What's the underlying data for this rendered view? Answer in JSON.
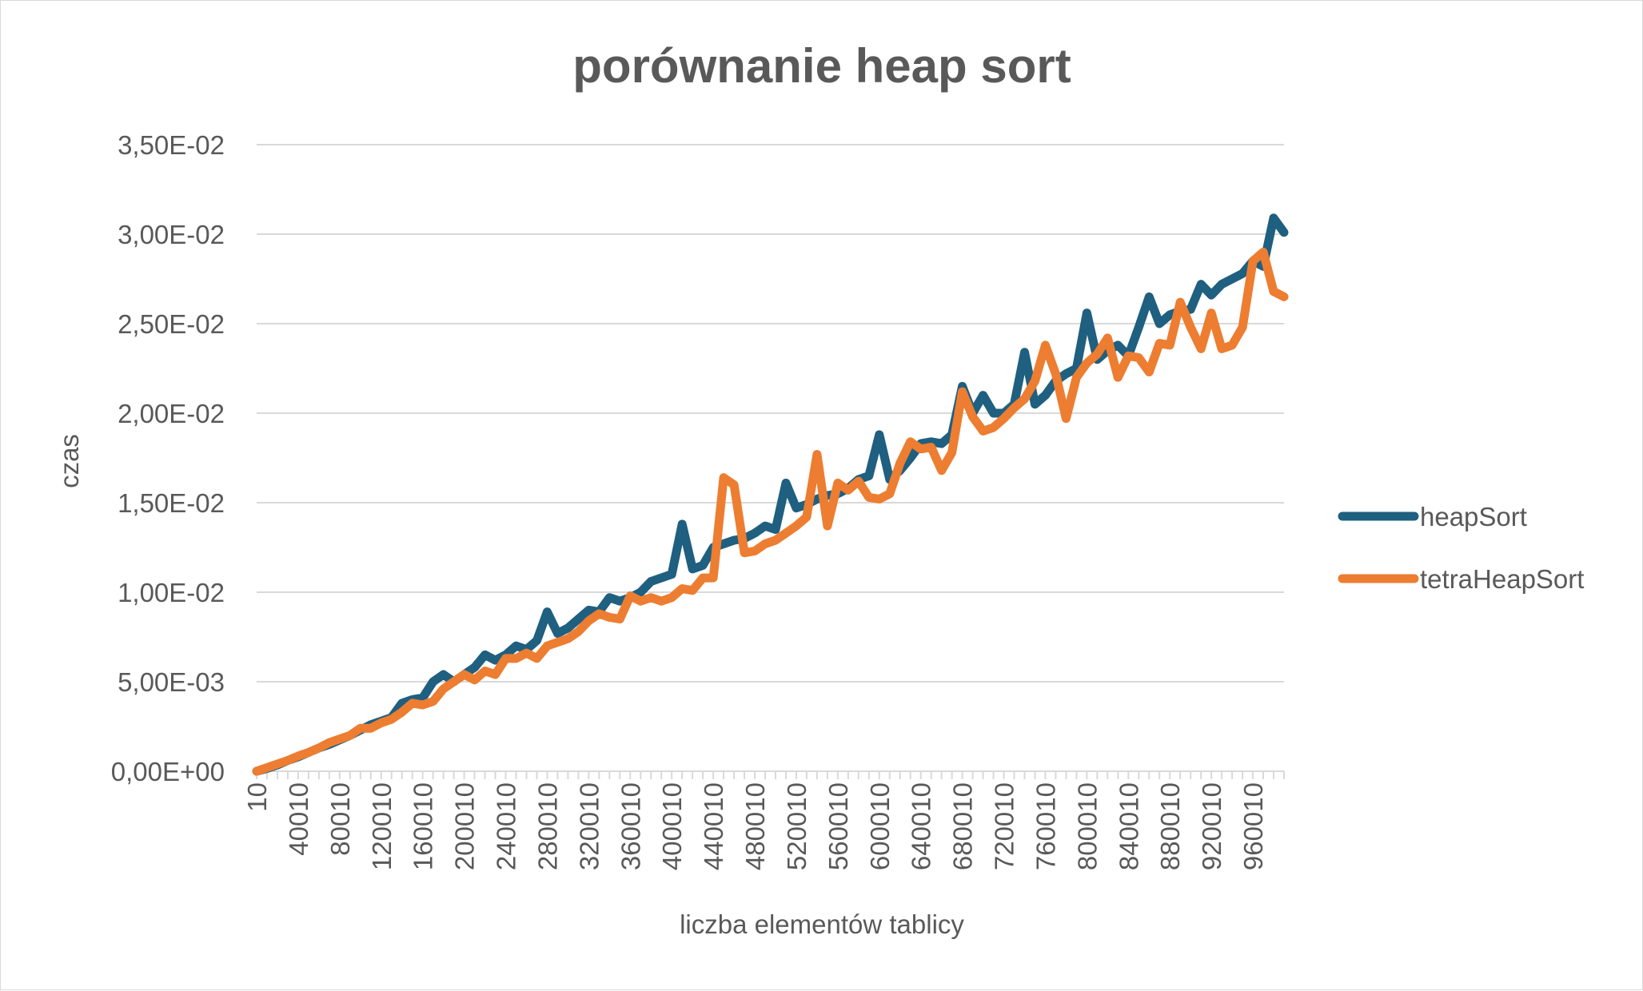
{
  "chart_data": {
    "type": "line",
    "title": "porównanie heap sort",
    "xlabel": "liczba elementów tablicy",
    "ylabel": "czas",
    "ylim": [
      0,
      0.035
    ],
    "y_ticks": [
      "0,00E+00",
      "5,00E-03",
      "1,00E-02",
      "1,50E-02",
      "2,00E-02",
      "2,50E-02",
      "3,00E-02",
      "3,50E-02"
    ],
    "x_tick_labels": [
      "10",
      "40010",
      "80010",
      "120010",
      "160010",
      "200010",
      "240010",
      "280010",
      "320010",
      "360010",
      "400010",
      "440010",
      "480010",
      "520010",
      "560010",
      "600010",
      "640010",
      "680010",
      "720010",
      "760010",
      "800010",
      "840010",
      "880010",
      "920010",
      "960010"
    ],
    "x_start": 10,
    "x_step": 10000,
    "grid": true,
    "legend_position": "right",
    "series": [
      {
        "name": "heapSort",
        "color": "#1f5f80",
        "values": [
          0.0,
          0.00015,
          0.00035,
          0.0006,
          0.0008,
          0.00105,
          0.0013,
          0.0015,
          0.00175,
          0.002,
          0.0023,
          0.0026,
          0.0028,
          0.003,
          0.0038,
          0.004,
          0.0041,
          0.005,
          0.0054,
          0.005,
          0.0054,
          0.0058,
          0.0065,
          0.0062,
          0.0065,
          0.007,
          0.0068,
          0.0073,
          0.0089,
          0.0077,
          0.008,
          0.0085,
          0.009,
          0.0089,
          0.0097,
          0.0095,
          0.0097,
          0.01,
          0.0106,
          0.0108,
          0.011,
          0.0138,
          0.0113,
          0.0115,
          0.0125,
          0.0127,
          0.0129,
          0.013,
          0.0133,
          0.0137,
          0.0135,
          0.0161,
          0.0147,
          0.0149,
          0.0152,
          0.0154,
          0.0155,
          0.0158,
          0.0163,
          0.0165,
          0.0188,
          0.0163,
          0.0168,
          0.0175,
          0.0183,
          0.0184,
          0.0183,
          0.0188,
          0.0215,
          0.02,
          0.021,
          0.02,
          0.02,
          0.0205,
          0.0234,
          0.0205,
          0.021,
          0.0218,
          0.0222,
          0.0225,
          0.0256,
          0.023,
          0.0235,
          0.0238,
          0.0232,
          0.0248,
          0.0265,
          0.025,
          0.0255,
          0.0257,
          0.0258,
          0.0272,
          0.0266,
          0.0272,
          0.0275,
          0.0278,
          0.0285,
          0.0282,
          0.0309,
          0.0301
        ]
      },
      {
        "name": "tetraHeapSort",
        "color": "#ed7d31",
        "values": [
          0.0,
          0.0002,
          0.0004,
          0.0006,
          0.00085,
          0.00105,
          0.0013,
          0.0016,
          0.0018,
          0.002,
          0.0024,
          0.0024,
          0.0027,
          0.0029,
          0.0033,
          0.0038,
          0.0037,
          0.0039,
          0.0046,
          0.005,
          0.0054,
          0.0051,
          0.0056,
          0.0054,
          0.0063,
          0.0063,
          0.0066,
          0.0063,
          0.007,
          0.0072,
          0.0074,
          0.0078,
          0.0084,
          0.0088,
          0.0086,
          0.0085,
          0.0098,
          0.0095,
          0.0097,
          0.0095,
          0.0097,
          0.0102,
          0.0101,
          0.0108,
          0.0108,
          0.0164,
          0.016,
          0.0122,
          0.0123,
          0.0127,
          0.0129,
          0.0133,
          0.0137,
          0.0142,
          0.0177,
          0.0137,
          0.0161,
          0.0157,
          0.0162,
          0.0153,
          0.0152,
          0.0155,
          0.0172,
          0.0184,
          0.018,
          0.0181,
          0.0168,
          0.0178,
          0.0212,
          0.0198,
          0.019,
          0.0192,
          0.0197,
          0.0203,
          0.0208,
          0.0218,
          0.0238,
          0.0222,
          0.0197,
          0.022,
          0.0228,
          0.0233,
          0.0242,
          0.022,
          0.0232,
          0.0231,
          0.0223,
          0.0239,
          0.0238,
          0.0262,
          0.0248,
          0.0236,
          0.0256,
          0.0236,
          0.0238,
          0.0248,
          0.0285,
          0.029,
          0.0268,
          0.0265
        ]
      }
    ]
  }
}
